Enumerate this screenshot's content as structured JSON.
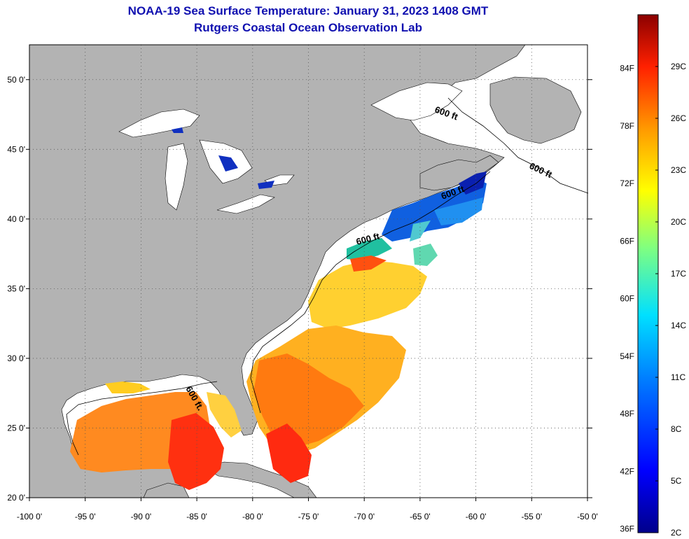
{
  "title": {
    "line1": "NOAA-19 Sea Surface Temperature:  January 31, 2023 1408 GMT",
    "line2": "Rutgers Coastal Ocean Observation Lab"
  },
  "map": {
    "lon_labels": [
      "-100 0'",
      "-95 0'",
      "-90 0'",
      "-85 0'",
      "-80 0'",
      "-75 0'",
      "-70 0'",
      "-65 0'",
      "-60 0'",
      "-55 0'",
      "-50 0'"
    ],
    "lat_labels": [
      "50 0'",
      "45 0'",
      "40 0'",
      "35 0'",
      "30 0'",
      "25 0'",
      "20 0'"
    ],
    "contour_label": "600 ft.",
    "contour_label_alt": "600 ft",
    "colors": {
      "land": "#b3b3b3",
      "no_data": "#ffffff"
    }
  },
  "colorbar": {
    "fahrenheit": [
      "84F",
      "78F",
      "72F",
      "66F",
      "60F",
      "54F",
      "48F",
      "42F",
      "36F"
    ],
    "celsius": [
      "29C",
      "26C",
      "23C",
      "20C",
      "17C",
      "14C",
      "11C",
      "8C",
      "5C",
      "2C"
    ]
  }
}
